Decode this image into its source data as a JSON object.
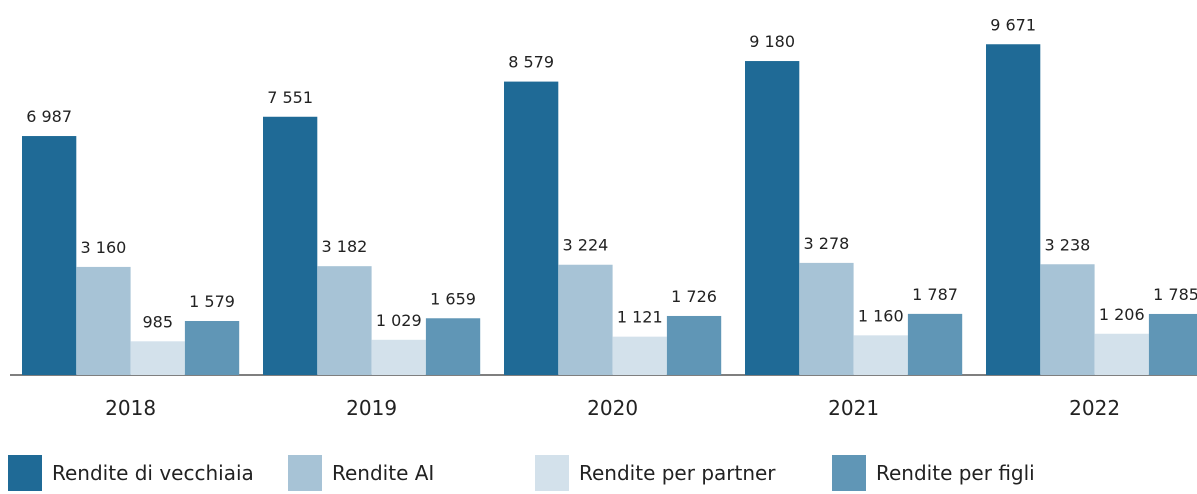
{
  "chart_data": {
    "type": "bar",
    "categories": [
      "2018",
      "2019",
      "2020",
      "2021",
      "2022"
    ],
    "series": [
      {
        "name": "Rendite di vecchiaia",
        "color": "#1f6a96",
        "values": [
          6987,
          7551,
          8579,
          9180,
          9671
        ],
        "value_labels": [
          "6 987",
          "7 551",
          "8 579",
          "9 180",
          "9 671"
        ]
      },
      {
        "name": "Rendite AI",
        "color": "#a7c3d6",
        "values": [
          3160,
          3182,
          3224,
          3278,
          3238
        ],
        "value_labels": [
          "3 160",
          "3 182",
          "3 224",
          "3 278",
          "3 238"
        ]
      },
      {
        "name": "Rendite per partner",
        "color": "#d3e1eb",
        "values": [
          985,
          1029,
          1121,
          1160,
          1206
        ],
        "value_labels": [
          "985",
          "1 029",
          "1 121",
          "1 160",
          "1 206"
        ]
      },
      {
        "name": "Rendite per figli",
        "color": "#6096b6",
        "values": [
          1579,
          1659,
          1726,
          1787,
          1785
        ],
        "value_labels": [
          "1 579",
          "1 659",
          "1 726",
          "1 787",
          "1 785"
        ]
      }
    ],
    "ylim": [
      0,
      10000
    ]
  }
}
